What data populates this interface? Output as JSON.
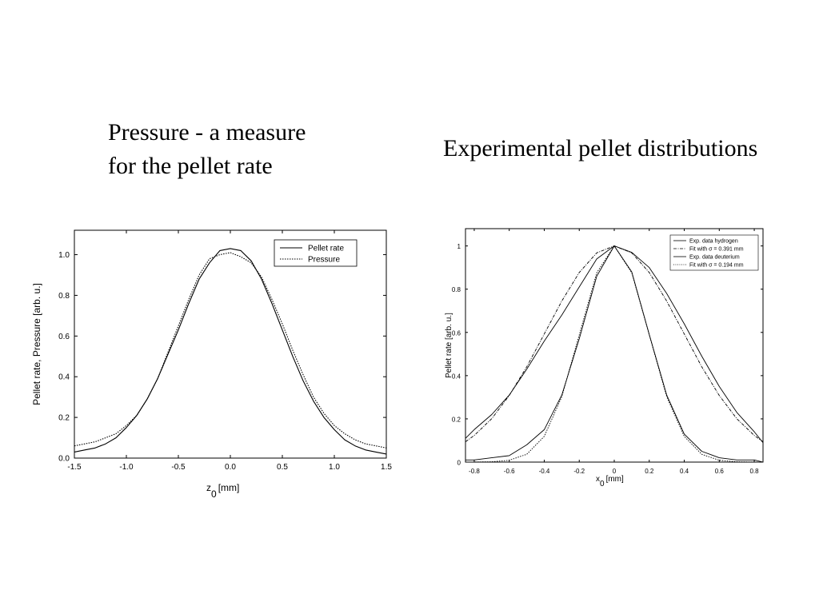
{
  "slide": {
    "heading_left_line1": "Pressure - a measure",
    "heading_left_line2": "for the pellet rate",
    "heading_right": "Experimental pellet distributions"
  },
  "chart_data": [
    {
      "type": "line",
      "xlabel_main": "z",
      "xlabel_sub": "0",
      "xlabel_unit": "[mm]",
      "ylabel": "Pellet rate, Pressure [arb. u.]",
      "xlim": [
        -1.5,
        1.5
      ],
      "ylim": [
        0.0,
        1.12
      ],
      "xticks": [
        "-1.5",
        "-1.0",
        "-0.5",
        "0.0",
        "0.5",
        "1.0",
        "1.5"
      ],
      "yticks": [
        "0.0",
        "0.2",
        "0.4",
        "0.6",
        "0.8",
        "1.0"
      ],
      "legend_position": "top-right",
      "grid": false,
      "series": [
        {
          "name": "Pellet rate",
          "style": "solid",
          "color": "#000000",
          "x": [
            -1.5,
            -1.4,
            -1.3,
            -1.2,
            -1.1,
            -1.0,
            -0.9,
            -0.8,
            -0.7,
            -0.6,
            -0.5,
            -0.4,
            -0.3,
            -0.2,
            -0.1,
            0.0,
            0.1,
            0.2,
            0.3,
            0.4,
            0.5,
            0.6,
            0.7,
            0.8,
            0.9,
            1.0,
            1.1,
            1.2,
            1.3,
            1.4,
            1.5
          ],
          "y": [
            0.03,
            0.04,
            0.05,
            0.07,
            0.1,
            0.15,
            0.21,
            0.29,
            0.39,
            0.51,
            0.63,
            0.76,
            0.88,
            0.96,
            1.02,
            1.03,
            1.02,
            0.97,
            0.88,
            0.76,
            0.63,
            0.5,
            0.38,
            0.28,
            0.2,
            0.14,
            0.09,
            0.06,
            0.04,
            0.03,
            0.02
          ]
        },
        {
          "name": "Pressure",
          "style": "dotted",
          "color": "#000000",
          "x": [
            -1.5,
            -1.4,
            -1.3,
            -1.2,
            -1.1,
            -1.0,
            -0.9,
            -0.8,
            -0.7,
            -0.6,
            -0.5,
            -0.4,
            -0.3,
            -0.2,
            -0.1,
            0.0,
            0.1,
            0.2,
            0.3,
            0.4,
            0.5,
            0.6,
            0.7,
            0.8,
            0.9,
            1.0,
            1.1,
            1.2,
            1.3,
            1.4,
            1.5
          ],
          "y": [
            0.06,
            0.07,
            0.08,
            0.1,
            0.12,
            0.16,
            0.21,
            0.29,
            0.39,
            0.52,
            0.65,
            0.78,
            0.9,
            0.98,
            1.0,
            1.01,
            0.99,
            0.96,
            0.89,
            0.78,
            0.66,
            0.53,
            0.41,
            0.3,
            0.22,
            0.16,
            0.12,
            0.09,
            0.07,
            0.06,
            0.05
          ]
        }
      ]
    },
    {
      "type": "line",
      "xlabel_main": "x",
      "xlabel_sub": "0",
      "xlabel_unit": "[mm]",
      "ylabel": "Pellet rate [arb. u.]",
      "xlim": [
        -0.85,
        0.85
      ],
      "ylim": [
        0.0,
        1.08
      ],
      "xticks": [
        "-0.8",
        "-0.6",
        "-0.4",
        "-0.2",
        "0",
        "0.2",
        "0.4",
        "0.6",
        "0.8"
      ],
      "yticks": [
        "0",
        "0.2",
        "0.4",
        "0.6",
        "0.8",
        "1"
      ],
      "legend_position": "top-right",
      "grid": false,
      "series": [
        {
          "name": "Exp. data hydrogen",
          "style": "solid",
          "color": "#000000",
          "x": [
            -0.85,
            -0.8,
            -0.7,
            -0.6,
            -0.5,
            -0.4,
            -0.3,
            -0.2,
            -0.1,
            0.0,
            0.1,
            0.2,
            0.3,
            0.4,
            0.5,
            0.6,
            0.7,
            0.8,
            0.85
          ],
          "y": [
            0.11,
            0.15,
            0.22,
            0.31,
            0.43,
            0.56,
            0.68,
            0.81,
            0.94,
            1.0,
            0.97,
            0.9,
            0.78,
            0.64,
            0.49,
            0.35,
            0.23,
            0.14,
            0.09
          ]
        },
        {
          "name": "Fit with σ = 0.391 mm",
          "style": "dashdot",
          "color": "#000000",
          "x": [
            -0.85,
            -0.8,
            -0.7,
            -0.6,
            -0.5,
            -0.4,
            -0.3,
            -0.2,
            -0.1,
            0.0,
            0.1,
            0.2,
            0.3,
            0.4,
            0.5,
            0.6,
            0.7,
            0.8,
            0.85
          ],
          "y": [
            0.094,
            0.123,
            0.201,
            0.308,
            0.441,
            0.593,
            0.745,
            0.877,
            0.968,
            1.0,
            0.968,
            0.877,
            0.745,
            0.593,
            0.441,
            0.308,
            0.201,
            0.123,
            0.094
          ]
        },
        {
          "name": "Exp. data deuterium",
          "style": "solid",
          "color": "#000000",
          "x": [
            -0.85,
            -0.8,
            -0.7,
            -0.6,
            -0.5,
            -0.4,
            -0.3,
            -0.2,
            -0.1,
            0.0,
            0.1,
            0.2,
            0.3,
            0.4,
            0.5,
            0.6,
            0.7,
            0.8,
            0.85
          ],
          "y": [
            0.01,
            0.01,
            0.02,
            0.03,
            0.08,
            0.15,
            0.31,
            0.57,
            0.86,
            1.0,
            0.88,
            0.59,
            0.31,
            0.13,
            0.05,
            0.02,
            0.01,
            0.01,
            0.0
          ]
        },
        {
          "name": "Fit with σ = 0.194 mm",
          "style": "dotted",
          "color": "#000000",
          "x": [
            -0.85,
            -0.8,
            -0.7,
            -0.6,
            -0.5,
            -0.4,
            -0.3,
            -0.2,
            -0.1,
            0.0,
            0.1,
            0.2,
            0.3,
            0.4,
            0.5,
            0.6,
            0.7,
            0.8,
            0.85
          ],
          "y": [
            0.0001,
            0.0002,
            0.0015,
            0.0084,
            0.0361,
            0.119,
            0.302,
            0.588,
            0.876,
            1.0,
            0.876,
            0.588,
            0.302,
            0.119,
            0.0361,
            0.0084,
            0.0015,
            0.0002,
            0.0001
          ]
        }
      ]
    }
  ]
}
